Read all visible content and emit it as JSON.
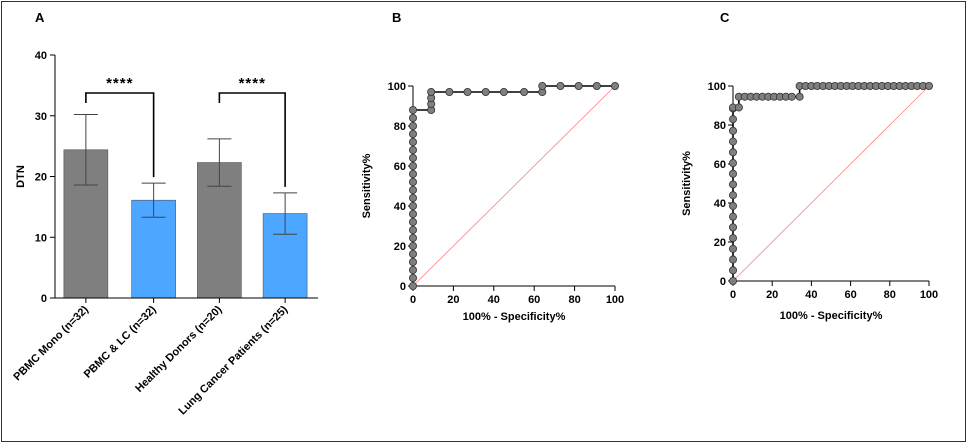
{
  "colors": {
    "bar_gray": "#7f7f7f",
    "bar_blue": "#4da6ff",
    "roc_point": "#7f7f7f",
    "roc_line": "#000000",
    "reference_line": "#ff8080"
  },
  "chart_data": [
    {
      "panel": "A",
      "type": "bar",
      "ylabel": "DTN",
      "ylim": [
        0,
        40
      ],
      "yticks": [
        "0",
        "10",
        "20",
        "30",
        "40"
      ],
      "categories": [
        "PBMC Mono (n=32)",
        "PBMC & LC (n=32)",
        "Healthy Donors (n=20)",
        "Lung Cancer Patients (n=25)"
      ],
      "values": [
        24.4,
        16.1,
        22.3,
        13.9
      ],
      "error_low": [
        18.6,
        13.3,
        18.4,
        10.5
      ],
      "error_high": [
        30.2,
        18.9,
        26.2,
        17.3
      ],
      "bar_colors": [
        "#7f7f7f",
        "#4da6ff",
        "#7f7f7f",
        "#4da6ff"
      ],
      "annotations": [
        {
          "between": [
            0,
            1
          ],
          "text": "****"
        },
        {
          "between": [
            2,
            3
          ],
          "text": "****"
        }
      ]
    },
    {
      "panel": "B",
      "type": "line",
      "xlabel": "100% - Specificity%",
      "ylabel": "Sensitivity%",
      "xlim": [
        0,
        100
      ],
      "ylim": [
        0,
        100
      ],
      "xticks": [
        "0",
        "20",
        "40",
        "60",
        "80",
        "100"
      ],
      "yticks": [
        "0",
        "20",
        "40",
        "60",
        "80",
        "100"
      ],
      "reference_diagonal": true,
      "x": [
        0,
        0,
        0,
        0,
        0,
        0,
        0,
        0,
        0,
        0,
        0,
        0,
        0,
        0,
        0,
        0,
        0,
        0,
        0,
        0,
        0,
        0,
        0,
        9,
        9,
        9,
        9,
        18,
        27,
        36,
        45,
        55,
        64,
        64,
        73,
        82,
        91,
        100
      ],
      "y": [
        0,
        4,
        8,
        12,
        16,
        20,
        24,
        28,
        32,
        36,
        40,
        44,
        48,
        52,
        56,
        60,
        64,
        68,
        72,
        76,
        80,
        84,
        88,
        88,
        91,
        94,
        97,
        97,
        97,
        97,
        97,
        97,
        97,
        100,
        100,
        100,
        100,
        100
      ]
    },
    {
      "panel": "C",
      "type": "line",
      "xlabel": "100% - Specificity%",
      "ylabel": "Sensitivity%",
      "xlim": [
        0,
        100
      ],
      "ylim": [
        0,
        100
      ],
      "xticks": [
        "0",
        "20",
        "40",
        "60",
        "80",
        "100"
      ],
      "yticks": [
        "0",
        "20",
        "40",
        "60",
        "80",
        "100"
      ],
      "reference_diagonal": true,
      "x": [
        0,
        0,
        0,
        0,
        0,
        0,
        0,
        0,
        0,
        0,
        0,
        0,
        0,
        0,
        0,
        0,
        0,
        0,
        3,
        3,
        6,
        9,
        12,
        15,
        18,
        21,
        24,
        27,
        30,
        34,
        34,
        37,
        40,
        43,
        46,
        49,
        52,
        55,
        58,
        61,
        64,
        67,
        70,
        73,
        76,
        79,
        82,
        85,
        88,
        91,
        94,
        97,
        100
      ],
      "y": [
        0,
        5.5,
        11,
        16.5,
        22,
        27.5,
        33,
        38.5,
        44,
        49.5,
        55,
        60.5,
        66,
        71.5,
        77,
        83,
        88.5,
        89,
        89,
        94.5,
        94.5,
        94.5,
        94.5,
        94.5,
        94.5,
        94.5,
        94.5,
        94.5,
        94.5,
        94.5,
        100,
        100,
        100,
        100,
        100,
        100,
        100,
        100,
        100,
        100,
        100,
        100,
        100,
        100,
        100,
        100,
        100,
        100,
        100,
        100,
        100,
        100,
        100
      ]
    }
  ]
}
